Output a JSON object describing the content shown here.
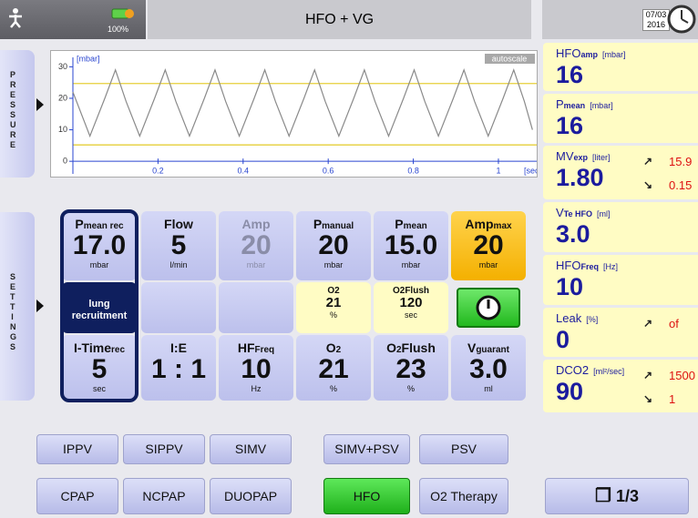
{
  "header": {
    "battery": "100%",
    "mode": "HFO + VG",
    "date": "07/03",
    "year": "2016"
  },
  "tabs": {
    "pressure": "PRESSURE",
    "settings": "SETTINGS"
  },
  "chart_data": {
    "type": "line",
    "y_unit": "[mbar]",
    "x_unit": "[sec]",
    "scale_mode": "autoscale",
    "xlim": [
      0,
      1.09
    ],
    "ylim": [
      -4,
      33
    ],
    "xticks": [
      0.2,
      0.4,
      0.6,
      0.8,
      1
    ],
    "yticks": [
      0,
      10,
      20,
      30
    ],
    "grid": false,
    "color": "#8a8a8a",
    "axis_color": "#2a46d0",
    "limit_color": "#e6cf3a",
    "limits": [
      24.7,
      5.2
    ],
    "x": [
      0,
      0.04,
      0.075,
      0.1,
      0.125,
      0.157,
      0.192,
      0.217,
      0.242,
      0.274,
      0.309,
      0.334,
      0.359,
      0.391,
      0.426,
      0.451,
      0.476,
      0.508,
      0.543,
      0.568,
      0.593,
      0.625,
      0.66,
      0.685,
      0.71,
      0.742,
      0.777,
      0.802,
      0.827,
      0.859,
      0.894,
      0.919,
      0.944,
      0.976,
      1.011,
      1.036,
      1.061,
      1.08
    ],
    "values": [
      22,
      8,
      20,
      29,
      19,
      8,
      20,
      29,
      19,
      8,
      20,
      29,
      19,
      8,
      20,
      29,
      19,
      8,
      20,
      29,
      19,
      8,
      20,
      29,
      19,
      8,
      20,
      29,
      19,
      8,
      20,
      29,
      19,
      8,
      20,
      29,
      19,
      10
    ]
  },
  "measurements": [
    {
      "label": "HFO",
      "sub": "amp",
      "unit": "[mbar]",
      "value": "16"
    },
    {
      "label": "P",
      "sub": "mean",
      "unit": "[mbar]",
      "value": "16"
    },
    {
      "label": "MV",
      "sub": "exp",
      "unit": "[liter]",
      "value": "1.80",
      "high": "15.9",
      "low": "0.15"
    },
    {
      "label": "V",
      "sub": "Te HFO",
      "unit": "[ml]",
      "value": "3.0"
    },
    {
      "label": "HFO",
      "sub": "Freq",
      "unit": "[Hz]",
      "value": "10"
    },
    {
      "label": "Leak",
      "unit": "[%]",
      "value": "0",
      "high": "of"
    },
    {
      "label": "DCO2",
      "unit": "[ml²/sec]",
      "value": "90",
      "high": "1500",
      "low": "1"
    }
  ],
  "settings": [
    {
      "top": {
        "label": "P",
        "sub": "mean rec",
        "value": "17.0",
        "unit": "mbar"
      },
      "mid": {
        "text": "lung recruitment"
      },
      "bottom": {
        "label": "I-Time",
        "sub": "rec",
        "value": "5",
        "unit": "sec"
      }
    },
    {
      "top": {
        "label": "Flow",
        "value": "5",
        "unit": "l/min"
      },
      "bottom": {
        "label": "I:E",
        "value": "1 : 1"
      }
    },
    {
      "top": {
        "label": "Amp",
        "value": "20",
        "unit": "mbar"
      },
      "bottom": {
        "label": "HF",
        "sub": "Freq",
        "value": "10",
        "unit": "Hz"
      }
    },
    {
      "top": {
        "label": "P",
        "sub": "manual",
        "value": "20",
        "unit": "mbar"
      },
      "mid": {
        "label": "O",
        "sub": "2",
        "value": "21",
        "unit": "%"
      },
      "bottom": {
        "label": "O",
        "sub": "2",
        "value": "21",
        "unit": "%"
      }
    },
    {
      "top": {
        "label": "P",
        "sub": "mean",
        "value": "15.0",
        "unit": "mbar"
      },
      "mid": {
        "label": "O",
        "sub": "2",
        "after": "Flush",
        "value": "120",
        "unit": "sec"
      },
      "bottom": {
        "label": "O",
        "sub": "2",
        "after": "Flush",
        "value": "23",
        "unit": "%"
      }
    },
    {
      "top": {
        "label": "Amp",
        "sub": "max",
        "value": "20",
        "unit": "mbar"
      },
      "mid": {},
      "bottom": {
        "label": "V",
        "sub": "guarant",
        "value": "3.0",
        "unit": "ml"
      }
    }
  ],
  "modes": [
    [
      "IPPV",
      "SIPPV",
      "SIMV",
      "SIMV+PSV",
      "PSV"
    ],
    [
      "CPAP",
      "NCPAP",
      "DUOPAP",
      "HFO",
      "O2 Therapy"
    ]
  ],
  "page": "1/3"
}
